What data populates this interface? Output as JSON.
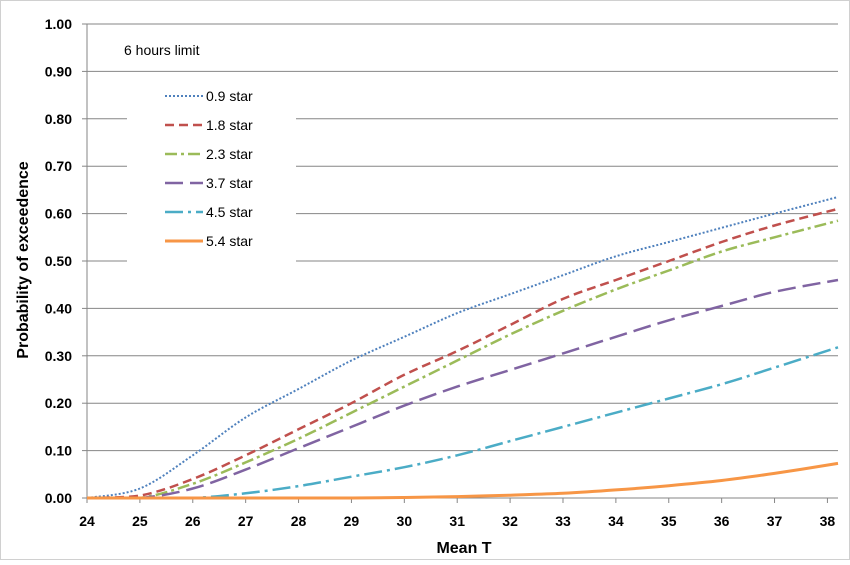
{
  "chart_data": {
    "type": "line",
    "title": "",
    "annotation": "6 hours limit",
    "xlabel": "Mean T",
    "ylabel": "Probability of exceedence",
    "xlim": [
      24,
      38.2
    ],
    "ylim": [
      0,
      1.0
    ],
    "x_ticks": [
      "24",
      "25",
      "26",
      "27",
      "28",
      "29",
      "30",
      "31",
      "32",
      "33",
      "34",
      "35",
      "36",
      "37",
      "38"
    ],
    "y_ticks": [
      "0.00",
      "0.10",
      "0.20",
      "0.30",
      "0.40",
      "0.50",
      "0.60",
      "0.70",
      "0.80",
      "0.90",
      "1.00"
    ],
    "grid": "horizontal",
    "legend_position": "top-left",
    "x": [
      24,
      25,
      26,
      27,
      28,
      29,
      30,
      31,
      32,
      33,
      34,
      35,
      36,
      37,
      38.2
    ],
    "series": [
      {
        "name": "0.9 star",
        "color": "#4f81bd",
        "dash": "dotted",
        "values": [
          0.0,
          0.02,
          0.09,
          0.17,
          0.23,
          0.29,
          0.34,
          0.39,
          0.43,
          0.47,
          0.51,
          0.54,
          0.57,
          0.6,
          0.635
        ]
      },
      {
        "name": "1.8 star",
        "color": "#c0504d",
        "dash": "dash",
        "values": [
          0.0,
          0.005,
          0.04,
          0.09,
          0.145,
          0.2,
          0.26,
          0.31,
          0.365,
          0.42,
          0.46,
          0.5,
          0.54,
          0.575,
          0.61
        ]
      },
      {
        "name": "2.3 star",
        "color": "#9bbb59",
        "dash": "dashdot",
        "values": [
          0.0,
          0.0,
          0.03,
          0.075,
          0.125,
          0.18,
          0.235,
          0.29,
          0.345,
          0.395,
          0.44,
          0.48,
          0.52,
          0.55,
          0.585
        ]
      },
      {
        "name": "3.7 star",
        "color": "#8064a2",
        "dash": "longdash",
        "values": [
          0.0,
          0.0,
          0.02,
          0.06,
          0.105,
          0.15,
          0.195,
          0.235,
          0.27,
          0.305,
          0.34,
          0.375,
          0.405,
          0.435,
          0.46
        ]
      },
      {
        "name": "4.5 star",
        "color": "#4bacc6",
        "dash": "longdashdot",
        "values": [
          0.0,
          0.0,
          0.0,
          0.01,
          0.025,
          0.045,
          0.065,
          0.09,
          0.12,
          0.15,
          0.18,
          0.21,
          0.24,
          0.275,
          0.318
        ]
      },
      {
        "name": "5.4 star",
        "color": "#f79646",
        "dash": "solid",
        "values": [
          0.0,
          0.0,
          0.0,
          0.0,
          0.0,
          0.0,
          0.001,
          0.003,
          0.006,
          0.01,
          0.017,
          0.026,
          0.037,
          0.052,
          0.073
        ]
      }
    ]
  }
}
